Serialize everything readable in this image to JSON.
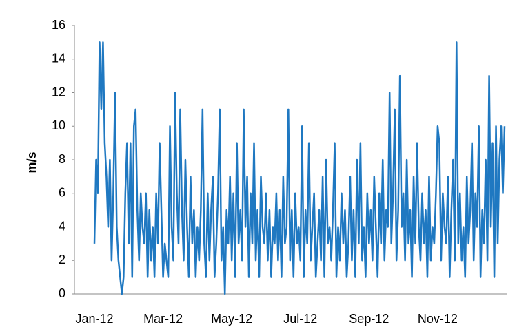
{
  "chart_data": {
    "type": "line",
    "y_label": "m/s",
    "color": "#1f78c1",
    "ylim": [
      0,
      16
    ],
    "yticks": [
      0,
      2,
      4,
      6,
      8,
      10,
      12,
      14,
      16
    ],
    "categories": [
      "Jan-12",
      null,
      null,
      null,
      null,
      null,
      null,
      null,
      null,
      null,
      null,
      null,
      null,
      null,
      null,
      null,
      null,
      null,
      null,
      null,
      null,
      null,
      null,
      null,
      null,
      null,
      null,
      null,
      null,
      null,
      null,
      null,
      null,
      null,
      null,
      null,
      null,
      null,
      null,
      null,
      "Mar-12",
      null,
      null,
      null,
      null,
      null,
      null,
      null,
      null,
      null,
      null,
      null,
      null,
      null,
      null,
      null,
      null,
      null,
      null,
      null,
      null,
      null,
      null,
      null,
      null,
      null,
      null,
      null,
      null,
      null,
      null,
      null,
      null,
      null,
      null,
      null,
      null,
      null,
      null,
      null,
      "May-12",
      null,
      null,
      null,
      null,
      null,
      null,
      null,
      null,
      null,
      null,
      null,
      null,
      null,
      null,
      null,
      null,
      null,
      null,
      null,
      null,
      null,
      null,
      null,
      null,
      null,
      null,
      null,
      null,
      null,
      null,
      null,
      null,
      null,
      null,
      null,
      null,
      null,
      null,
      null,
      "Jul-12",
      null,
      null,
      null,
      null,
      null,
      null,
      null,
      null,
      null,
      null,
      null,
      null,
      null,
      null,
      null,
      null,
      null,
      null,
      null,
      null,
      null,
      null,
      null,
      null,
      null,
      null,
      null,
      null,
      null,
      null,
      null,
      null,
      null,
      null,
      null,
      null,
      null,
      null,
      null,
      "Sep-12",
      null,
      null,
      null,
      null,
      null,
      null,
      null,
      null,
      null,
      null,
      null,
      null,
      null,
      null,
      null,
      null,
      null,
      null,
      null,
      null,
      null,
      null,
      null,
      null,
      null,
      null,
      null,
      null,
      null,
      null,
      null,
      null,
      null,
      null,
      null,
      null,
      null,
      null,
      null,
      "Nov-12",
      null,
      null,
      null,
      null,
      null,
      null,
      null,
      null,
      null,
      null,
      null,
      null,
      null,
      null,
      null,
      null,
      null,
      null,
      null,
      null,
      null,
      null,
      null,
      null,
      null,
      null,
      null,
      null,
      null,
      null,
      null,
      null,
      null,
      null,
      null,
      null,
      null,
      null,
      null
    ],
    "values": [
      3,
      8,
      6,
      15,
      11,
      15,
      9,
      7,
      4,
      8,
      2,
      6,
      12,
      4,
      2,
      1,
      0,
      1,
      6,
      9,
      3,
      9,
      1,
      10,
      11,
      5,
      2,
      6,
      4,
      3,
      6,
      1,
      5,
      2,
      4,
      1,
      6,
      3,
      9,
      5,
      1,
      3,
      2,
      1,
      10,
      4,
      2,
      12,
      6,
      3,
      11,
      5,
      2,
      8,
      4,
      1,
      7,
      3,
      5,
      1,
      4,
      2,
      5,
      11,
      3,
      1,
      6,
      2,
      5,
      7,
      1,
      3,
      6,
      11,
      2,
      4,
      0,
      5,
      3,
      7,
      2,
      6,
      1,
      9,
      3,
      5,
      2,
      11,
      4,
      7,
      1,
      6,
      3,
      9,
      2,
      5,
      1,
      7,
      4,
      3,
      6,
      2,
      5,
      1,
      4,
      3,
      6,
      2,
      5,
      1,
      7,
      3,
      4,
      11,
      2,
      5,
      1,
      6,
      3,
      4,
      2,
      10,
      1,
      5,
      3,
      9,
      2,
      4,
      6,
      1,
      3,
      5,
      2,
      7,
      1,
      8,
      3,
      4,
      2,
      5,
      9,
      1,
      4,
      2,
      6,
      3,
      5,
      1,
      3,
      7,
      2,
      5,
      1,
      8,
      3,
      9,
      2,
      4,
      1,
      6,
      3,
      5,
      2,
      7,
      4,
      1,
      6,
      3,
      8,
      2,
      5,
      4,
      12,
      3,
      6,
      11,
      2,
      5,
      13,
      4,
      6,
      2,
      8,
      3,
      5,
      1,
      7,
      3,
      9,
      4,
      2,
      6,
      3,
      5,
      1,
      7,
      2,
      4,
      3,
      6,
      10,
      9,
      2,
      6,
      4,
      3,
      7,
      1,
      5,
      8,
      2,
      15,
      3,
      6,
      2,
      4,
      1,
      7,
      3,
      5,
      9,
      2,
      6,
      4,
      10,
      1,
      5,
      3,
      8,
      2,
      13,
      4,
      9,
      1,
      10,
      3,
      8,
      10,
      6,
      10
    ]
  }
}
